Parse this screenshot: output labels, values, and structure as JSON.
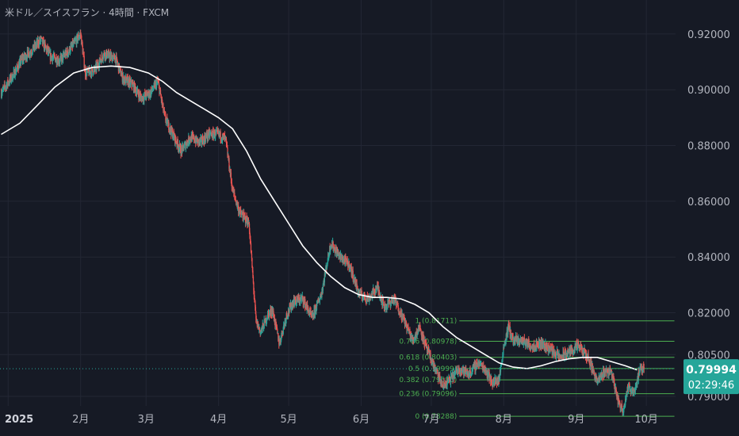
{
  "title": "米ドル／スイスフラン · 4時間 · FXCM",
  "colors": {
    "background": "#161a25",
    "up": "#26a69a",
    "down": "#ef5350",
    "ma": "#ffffff",
    "fib": "#4caf50",
    "grid": "#232734",
    "text": "#b2b5be"
  },
  "price_tag": {
    "value": "0.79994",
    "countdown": "02:29:46"
  },
  "chart_data": {
    "type": "candlestick",
    "title": "米ドル／スイスフラン · 4時間 · FXCM",
    "y_axis": {
      "ticks": [
        "0.92000",
        "0.90000",
        "0.88000",
        "0.86000",
        "0.84000",
        "0.82000",
        "0.80500",
        "0.79000"
      ],
      "range": [
        0.7866,
        0.9265
      ]
    },
    "x_axis": {
      "ticks": [
        "2025",
        "2月",
        "3月",
        "4月",
        "5月",
        "6月",
        "7月",
        "8月",
        "9月",
        "10月"
      ],
      "tick_days": [
        0,
        31,
        59,
        90,
        120,
        151,
        181,
        212,
        243,
        273
      ],
      "range": [
        -3.5,
        285.5
      ]
    },
    "price_path": [
      [
        -3,
        0.899
      ],
      [
        2,
        0.905
      ],
      [
        6,
        0.911
      ],
      [
        10,
        0.914
      ],
      [
        14,
        0.918
      ],
      [
        18,
        0.912
      ],
      [
        22,
        0.9105
      ],
      [
        26,
        0.914
      ],
      [
        31,
        0.92
      ],
      [
        33,
        0.906
      ],
      [
        37,
        0.907
      ],
      [
        41,
        0.913
      ],
      [
        46,
        0.911
      ],
      [
        49,
        0.904
      ],
      [
        53,
        0.902
      ],
      [
        57,
        0.897
      ],
      [
        61,
        0.899
      ],
      [
        64,
        0.903
      ],
      [
        67,
        0.89
      ],
      [
        71,
        0.883
      ],
      [
        74,
        0.878
      ],
      [
        78,
        0.883
      ],
      [
        82,
        0.881
      ],
      [
        86,
        0.884
      ],
      [
        90,
        0.884
      ],
      [
        93,
        0.882
      ],
      [
        96,
        0.864
      ],
      [
        99,
        0.856
      ],
      [
        103,
        0.852
      ],
      [
        106,
        0.817
      ],
      [
        108,
        0.813
      ],
      [
        111,
        0.819
      ],
      [
        113,
        0.821
      ],
      [
        116,
        0.809
      ],
      [
        119,
        0.819
      ],
      [
        122,
        0.824
      ],
      [
        126,
        0.825
      ],
      [
        130,
        0.818
      ],
      [
        134,
        0.827
      ],
      [
        138,
        0.845
      ],
      [
        142,
        0.84
      ],
      [
        146,
        0.837
      ],
      [
        150,
        0.827
      ],
      [
        154,
        0.825
      ],
      [
        158,
        0.829
      ],
      [
        161,
        0.822
      ],
      [
        165,
        0.825
      ],
      [
        169,
        0.818
      ],
      [
        173,
        0.81
      ],
      [
        176,
        0.815
      ],
      [
        179,
        0.807
      ],
      [
        183,
        0.799
      ],
      [
        186,
        0.7935
      ],
      [
        189,
        0.796
      ],
      [
        193,
        0.8
      ],
      [
        197,
        0.798
      ],
      [
        201,
        0.802
      ],
      [
        204,
        0.8
      ],
      [
        207,
        0.795
      ],
      [
        210,
        0.796
      ],
      [
        212,
        0.808
      ],
      [
        214,
        0.815
      ],
      [
        216,
        0.81
      ],
      [
        220,
        0.81
      ],
      [
        224,
        0.808
      ],
      [
        228,
        0.809
      ],
      [
        232,
        0.807
      ],
      [
        236,
        0.804
      ],
      [
        240,
        0.806
      ],
      [
        244,
        0.808
      ],
      [
        248,
        0.804
      ],
      [
        250,
        0.8
      ],
      [
        252,
        0.795
      ],
      [
        255,
        0.799
      ],
      [
        258,
        0.799
      ],
      [
        261,
        0.788
      ],
      [
        263,
        0.785
      ],
      [
        265,
        0.793
      ],
      [
        268,
        0.792
      ],
      [
        270,
        0.799
      ],
      [
        272,
        0.7999
      ]
    ],
    "moving_average": [
      [
        -3,
        0.884
      ],
      [
        5,
        0.888
      ],
      [
        12,
        0.894
      ],
      [
        20,
        0.901
      ],
      [
        28,
        0.906
      ],
      [
        36,
        0.908
      ],
      [
        44,
        0.9085
      ],
      [
        52,
        0.908
      ],
      [
        60,
        0.906
      ],
      [
        66,
        0.903
      ],
      [
        72,
        0.899
      ],
      [
        78,
        0.896
      ],
      [
        84,
        0.893
      ],
      [
        90,
        0.89
      ],
      [
        96,
        0.886
      ],
      [
        102,
        0.878
      ],
      [
        108,
        0.868
      ],
      [
        114,
        0.86
      ],
      [
        120,
        0.852
      ],
      [
        126,
        0.844
      ],
      [
        132,
        0.838
      ],
      [
        138,
        0.833
      ],
      [
        144,
        0.829
      ],
      [
        150,
        0.8265
      ],
      [
        156,
        0.8255
      ],
      [
        162,
        0.8255
      ],
      [
        168,
        0.825
      ],
      [
        174,
        0.823
      ],
      [
        180,
        0.82
      ],
      [
        186,
        0.815
      ],
      [
        192,
        0.811
      ],
      [
        198,
        0.808
      ],
      [
        204,
        0.805
      ],
      [
        210,
        0.802
      ],
      [
        216,
        0.8005
      ],
      [
        222,
        0.8
      ],
      [
        228,
        0.801
      ],
      [
        234,
        0.8025
      ],
      [
        240,
        0.8035
      ],
      [
        246,
        0.804
      ],
      [
        252,
        0.804
      ],
      [
        258,
        0.8025
      ],
      [
        264,
        0.801
      ],
      [
        269,
        0.7995
      ]
    ],
    "fibonacci": {
      "x_start": 193,
      "x_end": 285,
      "levels": [
        {
          "ratio": "1",
          "price": 0.81711
        },
        {
          "ratio": "0.786",
          "price": 0.80978
        },
        {
          "ratio": "0.618",
          "price": 0.80403
        },
        {
          "ratio": "0.5",
          "price": 0.79999
        },
        {
          "ratio": "0.382",
          "price": 0.79595
        },
        {
          "ratio": "0.236",
          "price": 0.79096
        },
        {
          "ratio": "0",
          "price": 0.78288
        }
      ]
    },
    "last_price": 0.79994
  }
}
